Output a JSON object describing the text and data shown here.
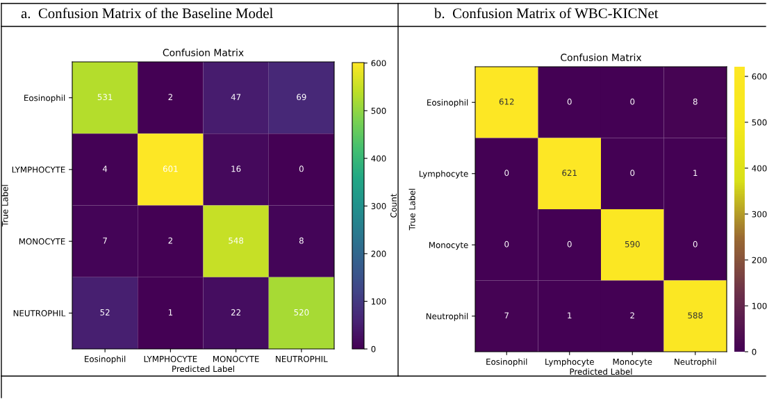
{
  "chart_data": [
    {
      "type": "heatmap",
      "title": "Confusion Matrix",
      "annotations": [
        "a.  Confusion Matrix of the Baseline Model"
      ],
      "xlabel": "Predicted Label",
      "ylabel": "True Label",
      "clabel": "Count",
      "categories": [
        "Eosinophil",
        "LYMPHOCYTE",
        "MONOCYTE",
        "NEUTROPHIL"
      ],
      "y_categories": [
        "Eosinophil",
        "LYMPHOCYTE",
        "MONOCYTE",
        "NEUTROPHIL"
      ],
      "cells": [
        [
          531,
          2,
          47,
          69
        ],
        [
          4,
          601,
          16,
          0
        ],
        [
          7,
          2,
          548,
          8
        ],
        [
          52,
          1,
          22,
          520
        ]
      ],
      "clim": [
        0,
        601
      ],
      "cticks": [
        0,
        100,
        200,
        300,
        400,
        500,
        600
      ],
      "data_labels": true
    },
    {
      "type": "heatmap",
      "title": "Confusion Matrix",
      "annotations": [
        "b.  Confusion Matrix of WBC-KICNet"
      ],
      "xlabel": "Predicted Label",
      "ylabel": "True Label",
      "categories": [
        "Eosinophil",
        "Lymphocyte",
        "Monocyte",
        "Neutrophil"
      ],
      "y_categories": [
        "Eosinophil",
        "Lymphocyte",
        "Monocyte",
        "Neutrophil"
      ],
      "cells": [
        [
          612,
          0,
          0,
          8
        ],
        [
          0,
          621,
          0,
          1
        ],
        [
          0,
          0,
          590,
          0
        ],
        [
          7,
          1,
          2,
          588
        ]
      ],
      "clim": [
        0,
        621
      ],
      "cticks": [
        0,
        100,
        200,
        300,
        400,
        500,
        600
      ],
      "data_labels": true
    }
  ]
}
